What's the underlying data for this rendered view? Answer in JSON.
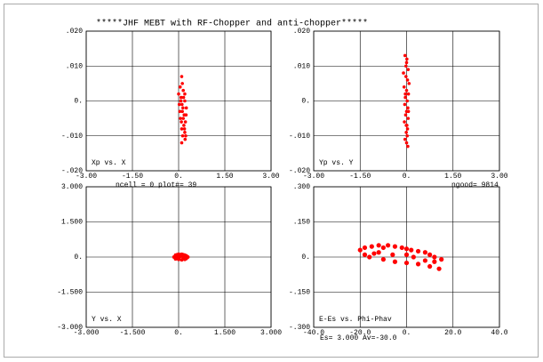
{
  "title": "*****JHF MEBT with RF-Chopper and anti-chopper*****",
  "chart_data": [
    {
      "type": "scatter",
      "label": "Xp vs. X",
      "annotation": "ncell =      0   plot#=    39",
      "color": "#ff0000",
      "grid": true,
      "xlim": [
        -3,
        3
      ],
      "ylim": [
        -0.02,
        0.02
      ],
      "xticks": [
        {
          "value": -3,
          "label": "-3.00"
        },
        {
          "value": -1.5,
          "label": "-1.50"
        },
        {
          "value": 0,
          "label": "0."
        },
        {
          "value": 1.5,
          "label": "1.50"
        },
        {
          "value": 3,
          "label": "3.00"
        }
      ],
      "yticks": [
        {
          "value": -0.02,
          "label": "-.020"
        },
        {
          "value": -0.01,
          "label": "-.010"
        },
        {
          "value": 0,
          "label": "0."
        },
        {
          "value": 0.01,
          "label": ".010"
        },
        {
          "value": 0.02,
          "label": ".020"
        }
      ],
      "x": [
        0.0,
        0.05,
        0.1,
        0.15,
        0.2,
        0.25,
        0.02,
        0.08,
        0.12,
        0.18,
        0.22,
        0.06,
        0.1,
        0.14,
        0.2,
        0.24,
        0.04,
        0.09,
        0.13,
        0.17,
        0.21,
        0.12,
        0.16,
        0.1,
        0.19,
        0.07,
        0.15,
        0.2,
        0.11,
        0.23
      ],
      "y": [
        0.002,
        0.004,
        0.007,
        0.003,
        0.0,
        -0.002,
        -0.001,
        0.001,
        -0.003,
        -0.004,
        -0.006,
        -0.005,
        -0.008,
        -0.002,
        -0.009,
        -0.004,
        -0.003,
        -0.006,
        -0.01,
        -0.007,
        -0.011,
        0.005,
        0.001,
        -0.012,
        -0.008,
        0.0,
        -0.005,
        0.002,
        -0.001,
        -0.01
      ]
    },
    {
      "type": "scatter",
      "label": "Yp vs. Y",
      "annotation": "ngood=   9814",
      "color": "#ff0000",
      "grid": true,
      "xlim": [
        -3,
        3
      ],
      "ylim": [
        -0.02,
        0.02
      ],
      "xticks": [
        {
          "value": -3,
          "label": "-3.00"
        },
        {
          "value": -1.5,
          "label": "-1.50"
        },
        {
          "value": 0,
          "label": "0."
        },
        {
          "value": 1.5,
          "label": "1.50"
        },
        {
          "value": 3,
          "label": "3.00"
        }
      ],
      "yticks": [
        {
          "value": -0.02,
          "label": "-.020"
        },
        {
          "value": -0.01,
          "label": "-.010"
        },
        {
          "value": 0,
          "label": "0."
        },
        {
          "value": 0.01,
          "label": ".010"
        },
        {
          "value": 0.02,
          "label": ".020"
        }
      ],
      "x": [
        -0.05,
        0.0,
        0.05,
        -0.1,
        -0.02,
        0.03,
        0.08,
        -0.08,
        0.0,
        0.06,
        -0.04,
        0.02,
        -0.06,
        0.04,
        0.0,
        -0.03,
        0.05,
        -0.07,
        0.01,
        0.03,
        -0.01,
        0.02,
        -0.05,
        0.0,
        0.04,
        -0.02,
        0.06,
        -0.04,
        0.01,
        -0.01
      ],
      "y": [
        0.013,
        0.011,
        0.009,
        0.008,
        0.007,
        0.006,
        0.005,
        0.004,
        0.003,
        0.002,
        0.001,
        0.0,
        -0.001,
        -0.002,
        -0.003,
        -0.004,
        -0.005,
        -0.006,
        -0.007,
        -0.008,
        -0.009,
        -0.01,
        -0.011,
        -0.012,
        -0.013,
        0.01,
        -0.003,
        0.002,
        0.012,
        -0.007
      ]
    },
    {
      "type": "scatter",
      "label": "Y vs. X",
      "color": "#ff0000",
      "grid": true,
      "xlim": [
        -3,
        3
      ],
      "ylim": [
        -3,
        3
      ],
      "xticks": [
        {
          "value": -3,
          "label": "-3.000"
        },
        {
          "value": -1.5,
          "label": "-1.500"
        },
        {
          "value": 0,
          "label": "0."
        },
        {
          "value": 1.5,
          "label": "1.500"
        },
        {
          "value": 3,
          "label": "3.000"
        }
      ],
      "yticks": [
        {
          "value": -3,
          "label": "-3.000"
        },
        {
          "value": -1.5,
          "label": "-1.500"
        },
        {
          "value": 0,
          "label": "0."
        },
        {
          "value": 1.5,
          "label": "1.500"
        },
        {
          "value": 3,
          "label": "3.000"
        }
      ],
      "x": [
        -0.15,
        -0.1,
        -0.05,
        0.0,
        0.05,
        0.1,
        0.15,
        0.2,
        0.25,
        0.3,
        -0.1,
        0.0,
        0.1,
        0.2,
        -0.05,
        0.05,
        0.15,
        0.25,
        0.0,
        0.1
      ],
      "y": [
        0.0,
        0.08,
        0.1,
        0.12,
        0.1,
        0.12,
        0.1,
        0.08,
        0.05,
        0.0,
        -0.08,
        -0.1,
        -0.12,
        -0.1,
        0.0,
        0.03,
        -0.03,
        -0.06,
        -0.05,
        0.05
      ]
    },
    {
      "type": "scatter",
      "label": "E-Es vs. Phi-Phav",
      "annotation": "Es=   3.000 Av=-30.0",
      "color": "#ff0000",
      "grid": true,
      "xlim": [
        -40,
        40
      ],
      "ylim": [
        -0.3,
        0.3
      ],
      "xticks": [
        {
          "value": -40,
          "label": "-40.0"
        },
        {
          "value": -20,
          "label": "-20.0"
        },
        {
          "value": 0,
          "label": "0."
        },
        {
          "value": 20,
          "label": "20.0"
        },
        {
          "value": 40,
          "label": "40.0"
        }
      ],
      "yticks": [
        {
          "value": -0.3,
          "label": "-.300"
        },
        {
          "value": -0.15,
          "label": "-.150"
        },
        {
          "value": 0,
          "label": "0."
        },
        {
          "value": 0.15,
          "label": ".150"
        },
        {
          "value": 0.3,
          "label": ".300"
        }
      ],
      "x": [
        -20,
        -18,
        -15,
        -12,
        -10,
        -8,
        -5,
        -2,
        0,
        2,
        5,
        8,
        10,
        12,
        15,
        -16,
        -10,
        -5,
        0,
        5,
        10,
        14,
        -14,
        -6,
        3,
        8,
        -18,
        -12,
        0,
        12
      ],
      "y": [
        0.03,
        0.04,
        0.045,
        0.05,
        0.04,
        0.05,
        0.045,
        0.04,
        0.035,
        0.03,
        0.025,
        0.02,
        0.01,
        0.0,
        -0.01,
        0.0,
        -0.01,
        -0.02,
        -0.025,
        -0.03,
        -0.04,
        -0.05,
        0.015,
        0.01,
        0.0,
        -0.015,
        0.01,
        0.02,
        0.01,
        -0.02
      ]
    }
  ]
}
